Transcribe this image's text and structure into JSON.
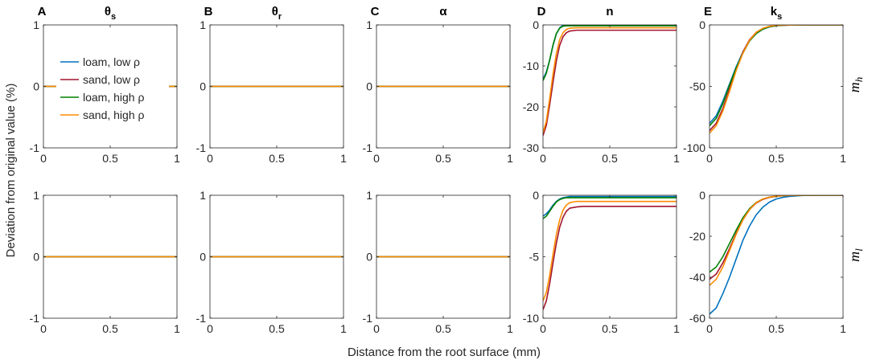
{
  "figure": {
    "xlabel": "Distance from the root surface (mm)",
    "ylabel": "Deviation from original value (%)",
    "row_labels": [
      {
        "base": "m",
        "sub": "h"
      },
      {
        "base": "m",
        "sub": "l"
      }
    ]
  },
  "legend": [
    {
      "label": "loam, low ρ",
      "color": "#0072bd"
    },
    {
      "label": "sand, low ρ",
      "color": "#a2142f"
    },
    {
      "label": "loam, high ρ",
      "color": "#008000"
    },
    {
      "label": "sand, high ρ",
      "color": "#ff8c00"
    }
  ],
  "chart_data": [
    {
      "panel": "A",
      "title": "θ",
      "title_sub": "s",
      "row": "m_h",
      "type": "line",
      "x": [
        0,
        1
      ],
      "xlim": [
        0,
        1
      ],
      "xticks": [
        "0",
        "0.5",
        "1"
      ],
      "ylim": [
        -1,
        1
      ],
      "yticks": [
        "-1",
        "0",
        "1"
      ],
      "series": [
        {
          "name": "loam, low ρ",
          "values": [
            0,
            0
          ]
        },
        {
          "name": "sand, low ρ",
          "values": [
            0,
            0
          ]
        },
        {
          "name": "loam, high ρ",
          "values": [
            0,
            0
          ]
        },
        {
          "name": "sand, high ρ",
          "values": [
            0,
            0
          ]
        }
      ]
    },
    {
      "panel": "B",
      "title": "θ",
      "title_sub": "r",
      "row": "m_h",
      "type": "line",
      "x": [
        0,
        1
      ],
      "xlim": [
        0,
        1
      ],
      "xticks": [
        "0",
        "0.5",
        "1"
      ],
      "ylim": [
        -1,
        1
      ],
      "yticks": [
        "-1",
        "0",
        "1"
      ],
      "series": [
        {
          "name": "loam, low ρ",
          "values": [
            0,
            0
          ]
        },
        {
          "name": "sand, low ρ",
          "values": [
            0,
            0
          ]
        },
        {
          "name": "loam, high ρ",
          "values": [
            0,
            0
          ]
        },
        {
          "name": "sand, high ρ",
          "values": [
            0,
            0
          ]
        }
      ]
    },
    {
      "panel": "C",
      "title": "α",
      "title_sub": "",
      "row": "m_h",
      "type": "line",
      "x": [
        0,
        1
      ],
      "xlim": [
        0,
        1
      ],
      "xticks": [
        "0",
        "0.5",
        "1"
      ],
      "ylim": [
        -1,
        1
      ],
      "yticks": [
        "-1",
        "0",
        "1"
      ],
      "series": [
        {
          "name": "loam, low ρ",
          "values": [
            0,
            0
          ]
        },
        {
          "name": "sand, low ρ",
          "values": [
            0,
            0
          ]
        },
        {
          "name": "loam, high ρ",
          "values": [
            0,
            0
          ]
        },
        {
          "name": "sand, high ρ",
          "values": [
            0,
            0
          ]
        }
      ]
    },
    {
      "panel": "D",
      "title": "n",
      "title_sub": "",
      "row": "m_h",
      "type": "line",
      "x": [
        0,
        0.025,
        0.05,
        0.075,
        0.1,
        0.125,
        0.15,
        0.175,
        0.2,
        0.25,
        0.3,
        0.4,
        0.5,
        0.6,
        0.8,
        1.0
      ],
      "xlim": [
        0,
        1
      ],
      "xticks": [
        "0",
        "0.5",
        "1"
      ],
      "ylim": [
        -30,
        0
      ],
      "yticks": [
        "-30",
        "-20",
        "-10",
        "0"
      ],
      "series": [
        {
          "name": "loam, low ρ",
          "values": [
            -13.2,
            -11.5,
            -8.6,
            -5.0,
            -2.2,
            -0.7,
            -0.1,
            0,
            0,
            0,
            0,
            0,
            0,
            0,
            0,
            0
          ]
        },
        {
          "name": "sand, low ρ",
          "values": [
            -27.0,
            -24.5,
            -19.5,
            -14.0,
            -8.8,
            -5.0,
            -2.9,
            -1.9,
            -1.5,
            -1.3,
            -1.3,
            -1.3,
            -1.3,
            -1.3,
            -1.3,
            -1.3
          ]
        },
        {
          "name": "loam, high ρ",
          "values": [
            -13.6,
            -11.8,
            -8.6,
            -4.9,
            -2.1,
            -0.8,
            -0.3,
            -0.2,
            -0.2,
            -0.2,
            -0.2,
            -0.2,
            -0.2,
            -0.2,
            -0.2,
            -0.2
          ]
        },
        {
          "name": "sand, high ρ",
          "values": [
            -26.3,
            -23.5,
            -18.0,
            -12.0,
            -7.0,
            -3.6,
            -1.9,
            -1.1,
            -0.8,
            -0.7,
            -0.7,
            -0.7,
            -0.7,
            -0.7,
            -0.7,
            -0.7
          ]
        }
      ]
    },
    {
      "panel": "E",
      "title": "k",
      "title_sub": "s",
      "row": "m_h",
      "type": "line",
      "x": [
        0,
        0.05,
        0.1,
        0.15,
        0.2,
        0.25,
        0.3,
        0.35,
        0.4,
        0.45,
        0.5,
        0.55,
        0.6,
        0.7,
        0.8,
        0.9,
        1.0
      ],
      "xlim": [
        0,
        1
      ],
      "xticks": [
        "0",
        "0.5",
        "1"
      ],
      "ylim": [
        -100,
        0
      ],
      "yticks": [
        "-100",
        "-50",
        "0"
      ],
      "series": [
        {
          "name": "loam, low ρ",
          "values": [
            -80,
            -74,
            -62,
            -48,
            -34,
            -22,
            -13,
            -7,
            -3.5,
            -1.6,
            -0.7,
            -0.3,
            -0.1,
            0,
            0,
            0,
            0
          ]
        },
        {
          "name": "sand, low ρ",
          "values": [
            -86,
            -80,
            -68,
            -52,
            -36,
            -22,
            -12,
            -6,
            -2.8,
            -1.2,
            -0.5,
            -0.2,
            -0.1,
            0,
            0,
            0,
            0
          ]
        },
        {
          "name": "loam, high ρ",
          "values": [
            -82,
            -76,
            -64,
            -49,
            -35,
            -23,
            -13,
            -7,
            -3.4,
            -1.5,
            -0.6,
            -0.3,
            -0.1,
            0,
            0,
            0,
            0
          ]
        },
        {
          "name": "sand, high ρ",
          "values": [
            -88,
            -82,
            -70,
            -54,
            -37,
            -23,
            -12.5,
            -6,
            -2.7,
            -1.1,
            -0.4,
            -0.2,
            -0.1,
            0,
            0,
            0,
            0
          ]
        }
      ]
    },
    {
      "panel": "",
      "title": "",
      "title_sub": "",
      "row": "m_l",
      "type": "line",
      "x": [
        0,
        1
      ],
      "xlim": [
        0,
        1
      ],
      "xticks": [
        "0",
        "0.5",
        "1"
      ],
      "ylim": [
        -1,
        1
      ],
      "yticks": [
        "-1",
        "0",
        "1"
      ],
      "series": [
        {
          "name": "loam, low ρ",
          "values": [
            0,
            0
          ]
        },
        {
          "name": "sand, low ρ",
          "values": [
            0,
            0
          ]
        },
        {
          "name": "loam, high ρ",
          "values": [
            0,
            0
          ]
        },
        {
          "name": "sand, high ρ",
          "values": [
            0,
            0
          ]
        }
      ]
    },
    {
      "panel": "",
      "title": "",
      "title_sub": "",
      "row": "m_l",
      "type": "line",
      "x": [
        0,
        1
      ],
      "xlim": [
        0,
        1
      ],
      "xticks": [
        "0",
        "0.5",
        "1"
      ],
      "ylim": [
        -1,
        1
      ],
      "yticks": [
        "-1",
        "0",
        "1"
      ],
      "series": [
        {
          "name": "loam, low ρ",
          "values": [
            0,
            0
          ]
        },
        {
          "name": "sand, low ρ",
          "values": [
            0,
            0
          ]
        },
        {
          "name": "loam, high ρ",
          "values": [
            0,
            0
          ]
        },
        {
          "name": "sand, high ρ",
          "values": [
            0,
            0
          ]
        }
      ]
    },
    {
      "panel": "",
      "title": "",
      "title_sub": "",
      "row": "m_l",
      "type": "line",
      "x": [
        0,
        1
      ],
      "xlim": [
        0,
        1
      ],
      "xticks": [
        "0",
        "0.5",
        "1"
      ],
      "ylim": [
        -1,
        1
      ],
      "yticks": [
        "-1",
        "0",
        "1"
      ],
      "series": [
        {
          "name": "loam, low ρ",
          "values": [
            0,
            0
          ]
        },
        {
          "name": "sand, low ρ",
          "values": [
            0,
            0
          ]
        },
        {
          "name": "loam, high ρ",
          "values": [
            0,
            0
          ]
        },
        {
          "name": "sand, high ρ",
          "values": [
            0,
            0
          ]
        }
      ]
    },
    {
      "panel": "",
      "title": "",
      "title_sub": "",
      "row": "m_l",
      "type": "line",
      "x": [
        0,
        0.025,
        0.05,
        0.075,
        0.1,
        0.125,
        0.15,
        0.175,
        0.2,
        0.25,
        0.3,
        0.4,
        0.5,
        0.6,
        0.8,
        1.0
      ],
      "xlim": [
        0,
        1
      ],
      "xticks": [
        "0",
        "0.5",
        "1"
      ],
      "ylim": [
        -10,
        0
      ],
      "yticks": [
        "-10",
        "-5",
        "0"
      ],
      "series": [
        {
          "name": "loam, low ρ",
          "values": [
            -1.7,
            -1.5,
            -1.2,
            -0.8,
            -0.5,
            -0.3,
            -0.2,
            -0.15,
            -0.1,
            -0.1,
            -0.1,
            -0.1,
            -0.1,
            -0.1,
            -0.1,
            -0.1
          ]
        },
        {
          "name": "sand, low ρ",
          "values": [
            -9.3,
            -8.6,
            -7.2,
            -5.5,
            -3.9,
            -2.6,
            -1.8,
            -1.3,
            -1.05,
            -0.95,
            -0.9,
            -0.9,
            -0.9,
            -0.9,
            -0.9,
            -0.9
          ]
        },
        {
          "name": "loam, high ρ",
          "values": [
            -1.9,
            -1.7,
            -1.3,
            -0.9,
            -0.55,
            -0.35,
            -0.25,
            -0.2,
            -0.2,
            -0.2,
            -0.2,
            -0.2,
            -0.2,
            -0.2,
            -0.2,
            -0.2
          ]
        },
        {
          "name": "sand, high ρ",
          "values": [
            -8.6,
            -7.9,
            -6.5,
            -4.8,
            -3.2,
            -2.0,
            -1.2,
            -0.8,
            -0.6,
            -0.5,
            -0.5,
            -0.5,
            -0.5,
            -0.5,
            -0.5,
            -0.5
          ]
        }
      ]
    },
    {
      "panel": "",
      "title": "",
      "title_sub": "",
      "row": "m_l",
      "type": "line",
      "x": [
        0,
        0.05,
        0.1,
        0.15,
        0.2,
        0.25,
        0.3,
        0.35,
        0.4,
        0.45,
        0.5,
        0.55,
        0.6,
        0.7,
        0.8,
        0.9,
        1.0
      ],
      "xlim": [
        0,
        1
      ],
      "xticks": [
        "0",
        "0.5",
        "1"
      ],
      "ylim": [
        -60,
        0
      ],
      "yticks": [
        "-60",
        "-40",
        "-20",
        "0"
      ],
      "series": [
        {
          "name": "loam, low ρ",
          "values": [
            -58,
            -55,
            -48,
            -40,
            -31,
            -22,
            -15,
            -9.5,
            -5.8,
            -3.3,
            -1.8,
            -1.0,
            -0.5,
            -0.1,
            0,
            0,
            0
          ]
        },
        {
          "name": "sand, low ρ",
          "values": [
            -41,
            -38.5,
            -33,
            -26,
            -18.5,
            -12,
            -7,
            -3.8,
            -2.0,
            -1.0,
            -0.5,
            -0.2,
            -0.1,
            0,
            0,
            0,
            0
          ]
        },
        {
          "name": "loam, high ρ",
          "values": [
            -37.5,
            -35,
            -30,
            -23.5,
            -17,
            -11,
            -6.5,
            -3.5,
            -1.8,
            -0.9,
            -0.4,
            -0.2,
            -0.1,
            0,
            0,
            0,
            0
          ]
        },
        {
          "name": "sand, high ρ",
          "values": [
            -44,
            -41,
            -35,
            -27,
            -19,
            -12,
            -7,
            -3.6,
            -1.8,
            -0.9,
            -0.4,
            -0.2,
            -0.1,
            0,
            0,
            0,
            0
          ]
        }
      ]
    }
  ]
}
